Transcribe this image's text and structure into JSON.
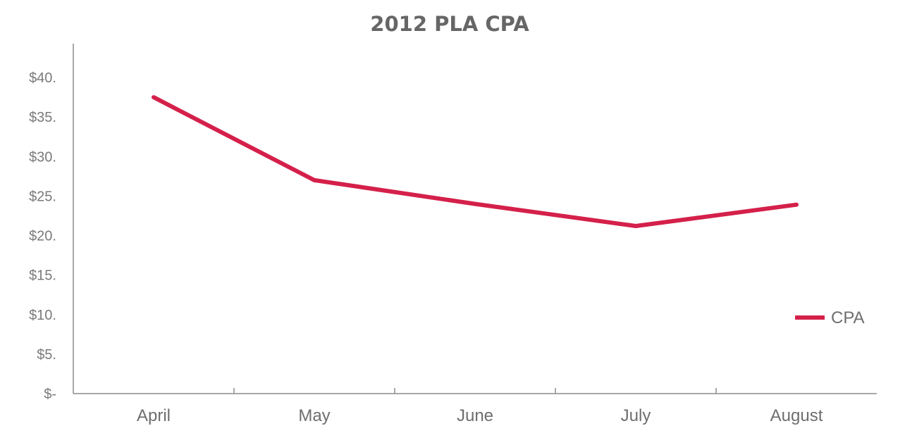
{
  "chart_data": {
    "type": "line",
    "title": "2012 PLA CPA",
    "xlabel": "",
    "ylabel": "",
    "categories": [
      "April",
      "May",
      "June",
      "July",
      "August"
    ],
    "series": [
      {
        "name": "CPA",
        "values": [
          37.5,
          27.0,
          24.0,
          21.2,
          23.9
        ],
        "color": "#d4204a"
      }
    ],
    "yticks": [
      {
        "value": 0,
        "label": "$-"
      },
      {
        "value": 5,
        "label": "$5."
      },
      {
        "value": 10,
        "label": "$10."
      },
      {
        "value": 15,
        "label": "$15."
      },
      {
        "value": 20,
        "label": "$20."
      },
      {
        "value": 25,
        "label": "$25."
      },
      {
        "value": 30,
        "label": "$30."
      },
      {
        "value": 35,
        "label": "$35."
      },
      {
        "value": 40,
        "label": "$40."
      }
    ],
    "ylim": [
      0,
      40
    ],
    "grid": false,
    "legend_position": "right"
  }
}
